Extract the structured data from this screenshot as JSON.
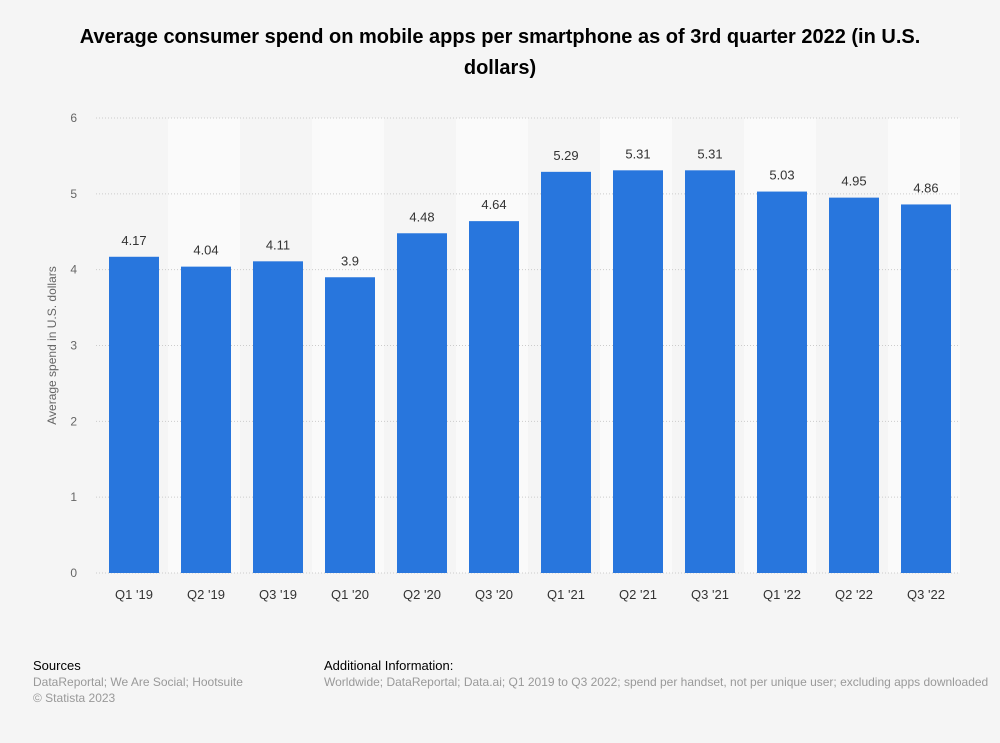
{
  "chart_data": {
    "type": "bar",
    "title": "Average consumer spend on mobile apps per smartphone as of 3rd quarter 2022 (in U.S. dollars)",
    "xlabel": "",
    "ylabel": "Average spend in U.S. dollars",
    "ylim": [
      0,
      6
    ],
    "yticks": [
      0,
      1,
      2,
      3,
      4,
      5,
      6
    ],
    "grid": true,
    "categories": [
      "Q1 '19",
      "Q2 '19",
      "Q3 '19",
      "Q1 '20",
      "Q2 '20",
      "Q3 '20",
      "Q1 '21",
      "Q2 '21",
      "Q3 '21",
      "Q1 '22",
      "Q2 '22",
      "Q3 '22"
    ],
    "values": [
      4.17,
      4.04,
      4.11,
      3.9,
      4.48,
      4.64,
      5.29,
      5.31,
      5.31,
      5.03,
      4.95,
      4.86
    ],
    "bar_color": "#2876dd"
  },
  "footer": {
    "sources_label": "Sources",
    "sources": "DataReportal; We Are Social; Hootsuite",
    "copyright": "© Statista 2023",
    "additional_label": "Additional Information:",
    "additional": "Worldwide; DataReportal; Data.ai; Q1 2019 to Q3 2022; spend per handset, not per unique user; excluding apps downloaded"
  }
}
